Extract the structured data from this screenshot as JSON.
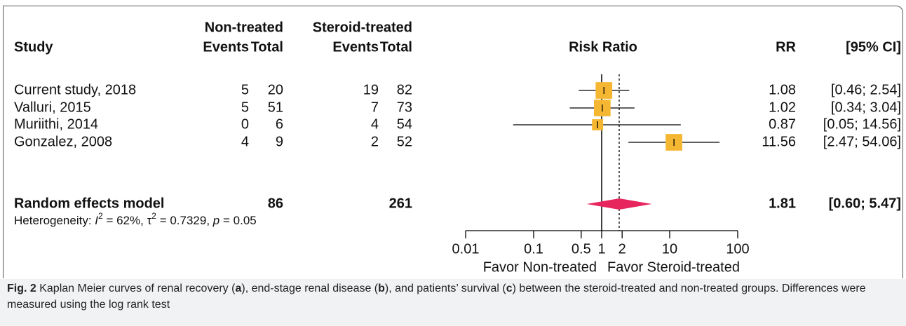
{
  "chart_data": {
    "type": "forest",
    "headers": {
      "study": "Study",
      "group1": "Non-treated",
      "group2": "Steroid-treated",
      "events1": "Events",
      "total1": "Total",
      "events2": "Events",
      "total2": "Total",
      "effect": "Risk Ratio",
      "rr": "RR",
      "ci": "[95% CI]"
    },
    "studies": [
      "Current study, 2018",
      "Valluri, 2015",
      "Muriithi, 2014",
      "Gonzalez, 2008"
    ],
    "events_non": [
      5,
      5,
      0,
      4
    ],
    "total_non": [
      20,
      51,
      6,
      9
    ],
    "events_ster": [
      19,
      7,
      4,
      2
    ],
    "total_ster": [
      82,
      73,
      54,
      52
    ],
    "rr": [
      1.08,
      1.02,
      0.87,
      11.56
    ],
    "ci_lower": [
      0.46,
      0.34,
      0.05,
      2.47
    ],
    "ci_upper": [
      2.54,
      3.04,
      14.56,
      54.06
    ],
    "ci_labels": [
      "[0.46; 2.54]",
      "[0.34; 3.04]",
      "[0.05; 14.56]",
      "[2.47; 54.06]"
    ],
    "weights": [
      29,
      29,
      13,
      29
    ],
    "color": "#f5b731",
    "summary": {
      "name": "Random effects model",
      "total_non": 86,
      "total_ster": 261,
      "rr": 1.81,
      "ci_lower": 0.6,
      "ci_upper": 5.47,
      "ci_label": "[0.60; 5.47]",
      "color": "#e8265e"
    },
    "heterogeneity": [
      {
        "text": "Heterogeneity: "
      },
      {
        "text": "I",
        "style": "italic"
      },
      {
        "text": "2",
        "style": "sup"
      },
      {
        "text": " = 62%, τ"
      },
      {
        "text": "2",
        "style": "sup"
      },
      {
        "text": " = 0.7329, "
      },
      {
        "text": "p",
        "style": "italic"
      },
      {
        "text": " = 0.05"
      }
    ],
    "xscale": "log",
    "xlim": [
      0.01,
      100
    ],
    "xticks": [
      0.01,
      0.1,
      0.5,
      1,
      2,
      10,
      100
    ],
    "reference_line": 1,
    "xlabel_left": "Favor Non-treated",
    "xlabel_right": "Favor Steroid-treated"
  },
  "caption": [
    {
      "text": "Fig. 2",
      "bold": true
    },
    {
      "text": " Kaplan Meier curves of renal recovery ("
    },
    {
      "text": "a",
      "bold": true
    },
    {
      "text": "), end-stage renal disease ("
    },
    {
      "text": "b",
      "bold": true
    },
    {
      "text": "), and patients’ survival ("
    },
    {
      "text": "c",
      "bold": true
    },
    {
      "text": ") between the steroid-treated and non-treated groups. Differences were measured using the log rank test"
    }
  ]
}
